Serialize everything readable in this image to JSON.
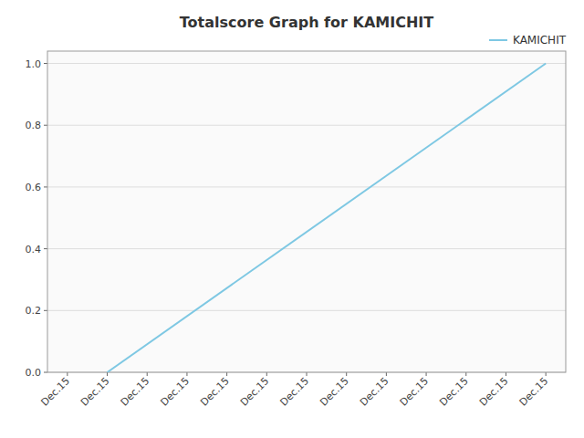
{
  "chart_data": {
    "type": "line",
    "title": "Totalscore Graph for KAMICHIT",
    "x": [
      1,
      12
    ],
    "series": [
      {
        "name": "KAMICHIT",
        "color": "#7ec8e3",
        "values": [
          0.0,
          1.0
        ]
      }
    ],
    "xlim": [
      -0.5,
      12.5
    ],
    "xticks": [
      {
        "value": 0,
        "label": "Dec.15"
      },
      {
        "value": 1,
        "label": "Dec.15"
      },
      {
        "value": 2,
        "label": "Dec.15"
      },
      {
        "value": 3,
        "label": "Dec.15"
      },
      {
        "value": 4,
        "label": "Dec.15"
      },
      {
        "value": 5,
        "label": "Dec.15"
      },
      {
        "value": 6,
        "label": "Dec.15"
      },
      {
        "value": 7,
        "label": "Dec.15"
      },
      {
        "value": 8,
        "label": "Dec.15"
      },
      {
        "value": 9,
        "label": "Dec.15"
      },
      {
        "value": 10,
        "label": "Dec.15"
      },
      {
        "value": 11,
        "label": "Dec.15"
      },
      {
        "value": 12,
        "label": "Dec.15"
      }
    ],
    "ylim": [
      0,
      1.04
    ],
    "yticks": [
      {
        "value": 0.0,
        "label": "0.0"
      },
      0.2,
      0.4,
      0.6,
      0.8,
      {
        "value": 1.0,
        "label": "1.0"
      }
    ],
    "grid": true,
    "legend": "upper right"
  }
}
